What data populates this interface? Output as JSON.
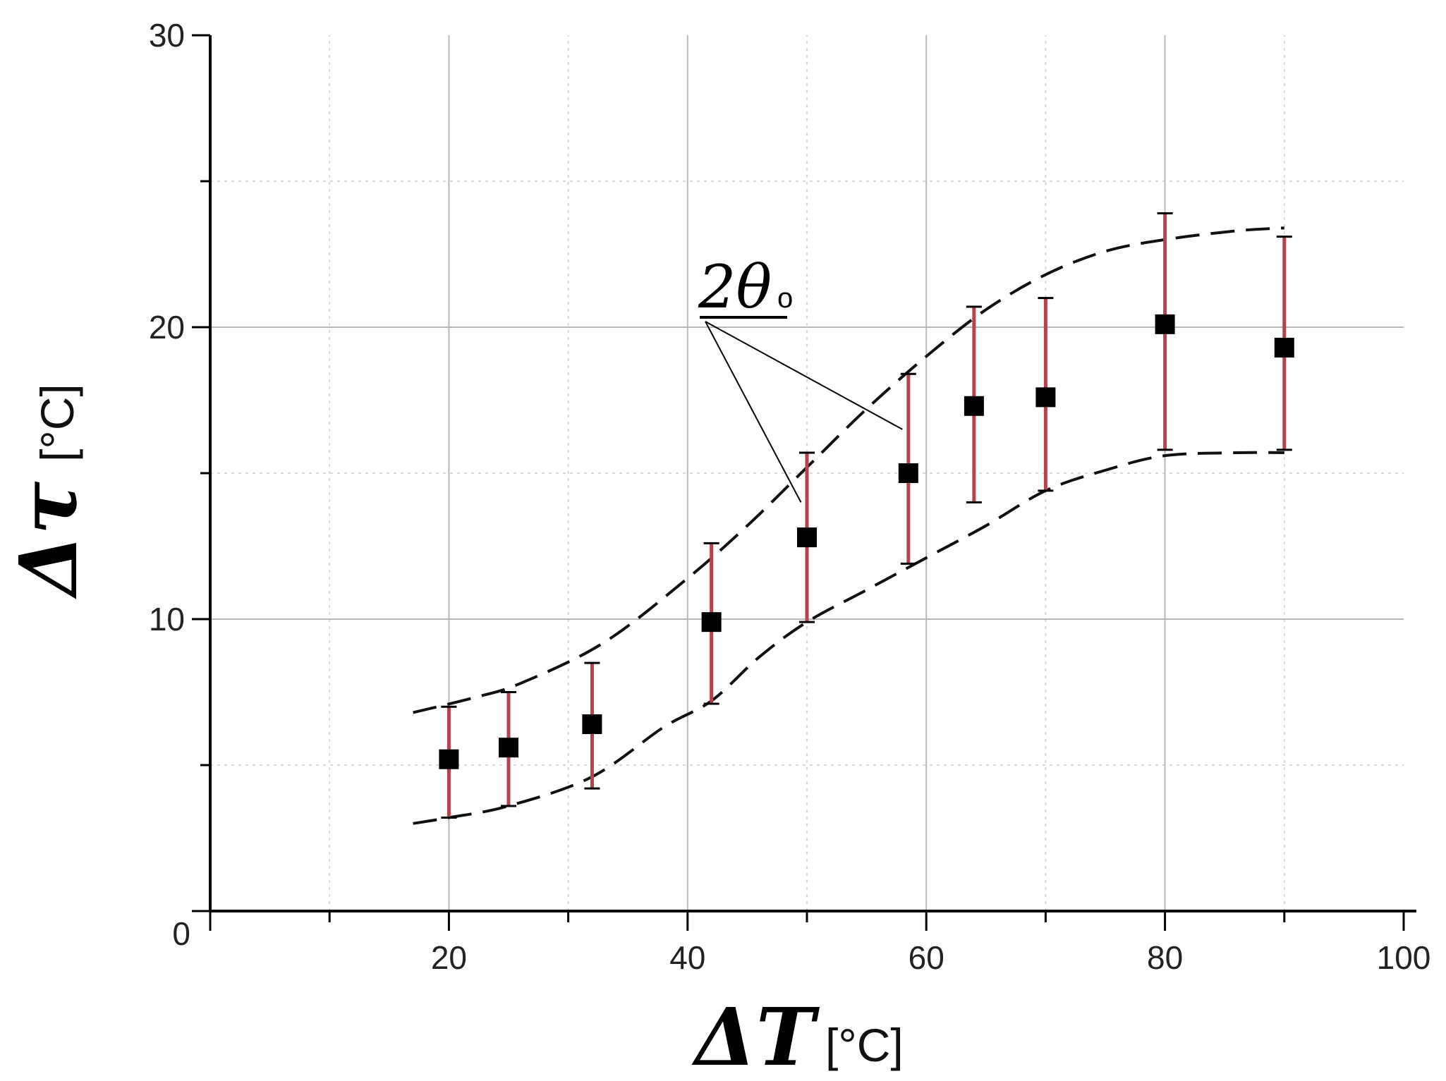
{
  "chart_data": {
    "type": "scatter",
    "title": "",
    "xlabel": {
      "symbol": "ΔT",
      "unit": "[°C]"
    },
    "ylabel": {
      "symbol": "Δτ",
      "unit": "[°C]"
    },
    "xlim": [
      0,
      100
    ],
    "ylim": [
      0,
      30
    ],
    "x_ticks": [
      20,
      40,
      60,
      80,
      100
    ],
    "y_ticks": [
      0,
      10,
      20,
      30
    ],
    "grid": true,
    "legend": "none",
    "annotation": {
      "text": "2θ",
      "subscript": "o"
    },
    "series": [
      {
        "x": [
          20,
          25,
          32,
          42,
          50,
          58.5,
          64,
          70,
          80,
          90
        ],
        "y": [
          5.2,
          5.6,
          6.4,
          9.9,
          12.8,
          15.0,
          17.3,
          17.6,
          20.1,
          19.3
        ],
        "y_low": [
          3.2,
          3.6,
          4.2,
          7.1,
          9.9,
          11.9,
          14.0,
          14.4,
          15.8,
          15.8
        ],
        "y_high": [
          7.0,
          7.5,
          8.5,
          12.6,
          15.7,
          18.4,
          20.7,
          21.0,
          23.9,
          23.1
        ]
      }
    ],
    "envelope_upper": {
      "x": [
        17,
        22,
        26,
        33,
        40,
        45,
        50,
        55,
        60,
        65,
        70,
        75,
        80,
        86,
        90
      ],
      "y": [
        6.8,
        7.3,
        7.8,
        9.2,
        11.4,
        13.2,
        15.2,
        17.2,
        19.0,
        20.6,
        21.8,
        22.6,
        23.0,
        23.3,
        23.4
      ]
    },
    "envelope_lower": {
      "x": [
        17,
        20,
        25,
        32,
        38,
        42,
        46,
        50,
        55,
        60,
        65,
        70,
        75,
        80,
        86,
        90
      ],
      "y": [
        3.0,
        3.2,
        3.6,
        4.6,
        6.3,
        7.2,
        8.7,
        9.9,
        11.0,
        12.1,
        13.2,
        14.4,
        15.1,
        15.6,
        15.7,
        15.7
      ]
    },
    "colors": {
      "error_bar": "#b5424f",
      "marker": "#000000",
      "grid_major": "#b9b9b9",
      "grid_minor": "#d9d9d9",
      "envelope": "#111111"
    }
  }
}
